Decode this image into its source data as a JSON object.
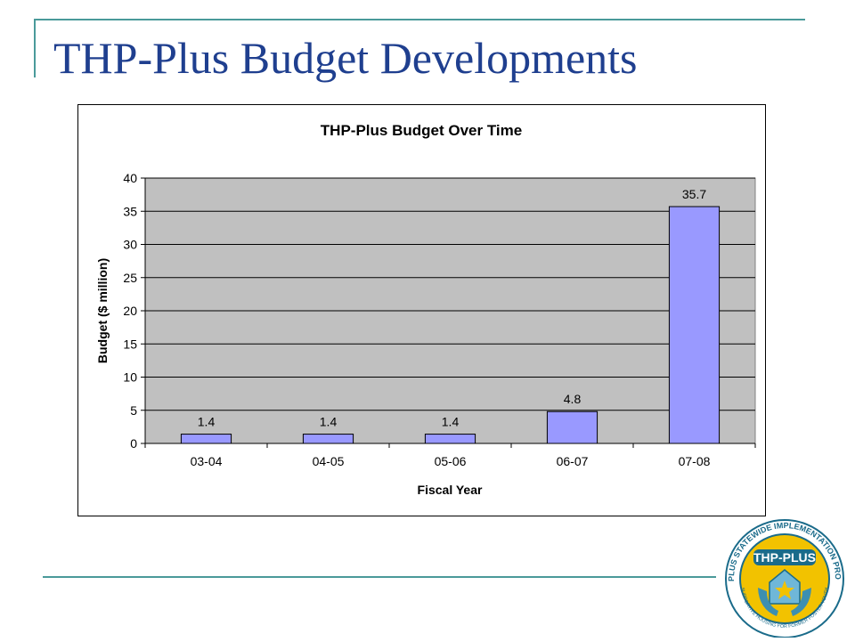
{
  "slide": {
    "title": "THP-Plus Budget Developments"
  },
  "chart_data": {
    "type": "bar",
    "title": "THP-Plus Budget Over Time",
    "xlabel": "Fiscal Year",
    "ylabel": "Budget ($ million)",
    "categories": [
      "03-04",
      "04-05",
      "05-06",
      "06-07",
      "07-08"
    ],
    "values": [
      1.4,
      1.4,
      1.4,
      4.8,
      35.7
    ],
    "data_labels": [
      "1.4",
      "1.4",
      "1.4",
      "4.8",
      "35.7"
    ],
    "ylim": [
      0,
      40
    ],
    "yticks": [
      0,
      5,
      10,
      15,
      20,
      25,
      30,
      35,
      40
    ],
    "grid": true,
    "legend": "none",
    "colors": {
      "bar_fill": "#9999ff",
      "bar_stroke": "#000000",
      "plot_background": "#c0c0c0"
    }
  },
  "logo": {
    "center_text": "THP-PLUS",
    "ring_text_top": "THP-PLUS STATEWIDE IMPLEMENTATION PROJECT",
    "ring_text_bottom": "SUPPORTIVE HOUSING FOR FORMER FOSTER YOUTH"
  },
  "colors": {
    "title": "#1f3f8f",
    "accent_rule": "#4a9a9a"
  }
}
